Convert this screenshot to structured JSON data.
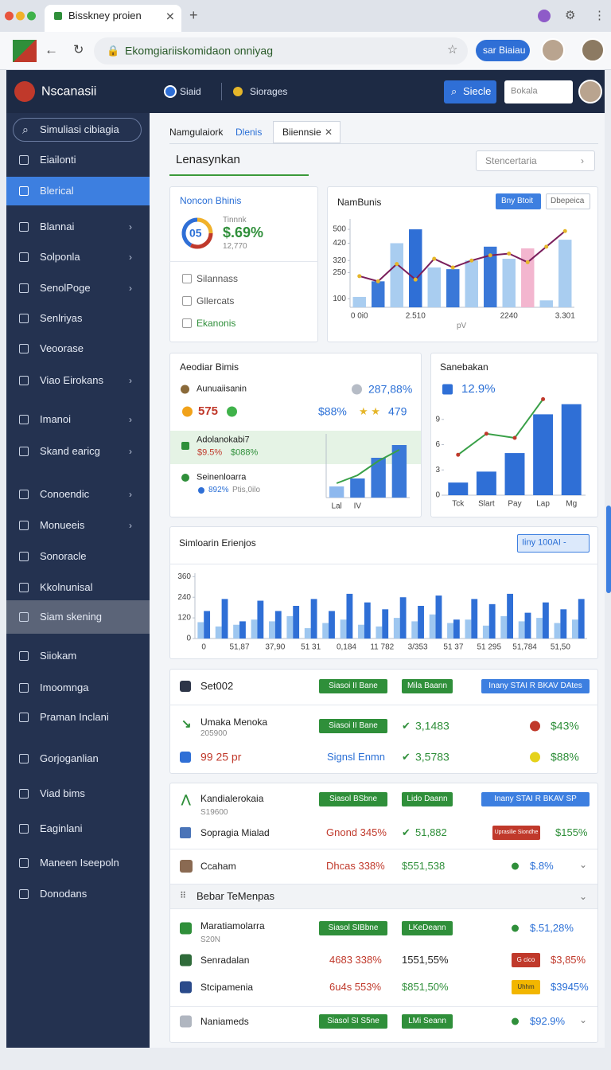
{
  "browser": {
    "tab_title": "Bisskney proien",
    "url": "Ekomgiariiskomidaon onniyag",
    "account_button": "sar Biaiau"
  },
  "header": {
    "brand": "Nscanasii",
    "menu": [
      "Siaid",
      "Siorages"
    ],
    "search_button": "Siecle",
    "search_placeholder": "Bokala"
  },
  "sidebar": {
    "search": "Simuliasi cibiagia",
    "items": [
      {
        "label": "Eiailonti"
      },
      {
        "label": "Blerical",
        "active": true
      },
      {
        "label": "Blannai",
        "chevron": true
      },
      {
        "label": "Solponla",
        "chevron": true
      },
      {
        "label": "SenolPoge",
        "chevron": true
      },
      {
        "label": "Senlriyas"
      },
      {
        "label": "Veoorase"
      },
      {
        "label": "Viao Eirokans",
        "chevron": true
      },
      {
        "label": "Imanoi",
        "chevron": true
      },
      {
        "label": "Skand earicg",
        "chevron": true
      },
      {
        "label": "Conoendic",
        "chevron": true
      },
      {
        "label": "Monueeis",
        "chevron": true
      },
      {
        "label": "Sonoracle"
      },
      {
        "label": "Kkolnunisal"
      },
      {
        "label": "Siam skening",
        "highlight": true
      },
      {
        "label": "Siiokam"
      },
      {
        "label": "Imoomnga"
      },
      {
        "label": "Praman Inclani"
      },
      {
        "label": "Gorjoganlian"
      },
      {
        "label": "Viad bims"
      },
      {
        "label": "Eaginlani"
      },
      {
        "label": "Maneen Iseepoln"
      },
      {
        "label": "Donodans"
      }
    ]
  },
  "tabs": [
    "Namgulaiork",
    "Dlenis",
    "Biiennsie"
  ],
  "page_title": "Lenasynkan",
  "filter": "Stencertaria",
  "summary_card": {
    "title": "Noncon Bhinis",
    "gauge": "05",
    "label": "Tinnnk",
    "value": "$.69%",
    "sub": "12,770",
    "list": [
      "Silannass",
      "Gllercats",
      "Ekanonis"
    ]
  },
  "stats_card": {
    "title": "Aeodiar Bimis",
    "row1": {
      "label": "Aunuaiisanin",
      "value": "287,88%"
    },
    "row2": {
      "value": "575",
      "value2": "$88%",
      "value3": "479"
    },
    "highlight": {
      "label": "Adolanokabi7",
      "value": "$9.5%",
      "value2": "$088%"
    },
    "row3": {
      "label": "Seinenloarra",
      "value": "892%",
      "value2": "Ptis,0ilo"
    }
  },
  "chart_data": [
    {
      "type": "bar",
      "title": "NamBunis",
      "buttons": [
        "Bny Btoit",
        "Dbepeica"
      ],
      "xlabel": "pV",
      "categories": [
        "0 0i0",
        null,
        null,
        "2.510",
        null,
        null,
        null,
        null,
        "2240",
        null,
        null,
        "3.301"
      ],
      "ylim": [
        50,
        560
      ],
      "yticks": [
        100,
        250,
        320,
        420,
        500
      ],
      "series": [
        {
          "colors": [
            "#a9cdf0",
            "#3a78d8",
            "#a9cdf0",
            "#2f6fd6",
            "#a9cdf0",
            "#3a78d8",
            "#a9cdf0",
            "#3a78d8",
            "#a9cdf0",
            "#f3b6cf",
            "#a9cdf0",
            "#a9cdf0"
          ],
          "values": [
            110,
            200,
            420,
            500,
            280,
            270,
            320,
            400,
            330,
            390,
            90,
            440
          ]
        },
        {
          "type": "line",
          "color": "#7a1f5c",
          "marker_color": "#e5b62a",
          "values": [
            230,
            200,
            300,
            210,
            330,
            280,
            320,
            350,
            360,
            310,
            400,
            490
          ]
        }
      ]
    },
    {
      "type": "bar",
      "categories": [
        "Lal",
        "IV",
        null,
        null
      ],
      "ylim": [
        0,
        400
      ],
      "series": [
        {
          "colors": [
            "#8db8ee",
            "#3a78d8",
            "#3a78d8",
            "#3a78d8"
          ],
          "values": [
            70,
            120,
            250,
            330
          ]
        },
        {
          "type": "line",
          "color": "#39a048",
          "values": [
            90,
            140,
            230,
            300
          ]
        }
      ]
    },
    {
      "type": "bar",
      "title": "Sanebakan",
      "subtitle": "12.9%",
      "categories": [
        "Tck",
        "Slart",
        "Pay",
        "Lap",
        "Mg"
      ],
      "ylim": [
        0,
        12
      ],
      "yticks": [
        0,
        3,
        6,
        9
      ],
      "series": [
        {
          "colors": [
            "#2f6fd6",
            "#2f6fd6",
            "#2f6fd6",
            "#2f6fd6",
            "#2f6fd6"
          ],
          "values": [
            1.5,
            2.8,
            5,
            9.6,
            10.8
          ]
        },
        {
          "type": "line",
          "color": "#39a048",
          "marker_color": "#c0392b",
          "values": [
            4.8,
            7.3,
            6.8,
            11.4,
            null
          ]
        }
      ]
    },
    {
      "type": "bar",
      "title": "Simloarin Erienjos",
      "control": "Iiny 100AI -",
      "categories": [
        "0",
        null,
        "51,87",
        null,
        "37,90",
        null,
        "51 31",
        null,
        "0,184",
        null,
        "11 782",
        null,
        "3/353",
        null,
        "51 37",
        null,
        "51 295",
        null,
        "51,784",
        null,
        "51,50",
        null
      ],
      "ylim": [
        0,
        380
      ],
      "yticks": [
        0,
        120,
        240,
        360
      ],
      "series": [
        {
          "color": "#9ec7f0",
          "values": [
            95,
            70,
            80,
            110,
            100,
            130,
            60,
            90,
            110,
            80,
            70,
            120,
            100,
            140,
            90,
            110,
            75,
            130,
            100,
            120,
            90,
            110
          ]
        },
        {
          "color": "#2f6fd6",
          "values": [
            160,
            230,
            100,
            220,
            160,
            190,
            230,
            160,
            260,
            210,
            170,
            240,
            190,
            250,
            110,
            230,
            200,
            260,
            150,
            210,
            170,
            230
          ]
        }
      ]
    }
  ],
  "table": {
    "panel1": {
      "title": "Set002",
      "header_badges": [
        "Siasoi II Bane",
        "Mila Baann",
        "Inany STAI R BKAV DAtes"
      ],
      "rows": [
        {
          "name": "Umaka Menoka",
          "sub": "205900",
          "badge": "Siasoi II Bane",
          "value": "3,1483",
          "pct": "$43%"
        },
        {
          "name": "99 25 pr",
          "status": "Signsl Enmn",
          "value": "3,5783",
          "pct": "$88%"
        }
      ]
    },
    "panel2": {
      "header": {
        "name": "Kandialerokaia",
        "sub": "S19600",
        "badges": [
          "Siasol BSbne",
          "Lido Daann",
          "Inany STAI R BKAV SP"
        ]
      },
      "rows": [
        {
          "name": "Sopragia Mialad",
          "a": "Gnond 345%",
          "b": "51,882",
          "badge": "Uprasilie Siondhe",
          "pct": "$155%"
        },
        {
          "name": "Ccaham",
          "a": "Dhcas 338%",
          "b": "$551,538",
          "pct": "$.8%"
        }
      ],
      "group": "Bebar TeMenpas",
      "group_rows": [
        {
          "name": "Maratiamolarra",
          "sub": "S20N",
          "badges": [
            "Siasol SIBbne",
            "LKeDeann"
          ],
          "pct": "$.51,28%"
        },
        {
          "name": "Senradalan",
          "a": "4683 338%",
          "b": "1551,55%",
          "badge": "G cico",
          "pct": "$3,85%"
        },
        {
          "name": "Stcipamenia",
          "a": "6u4s 553%",
          "b": "$851,50%",
          "badge": "Uhhm",
          "pct": "$3945%"
        },
        {
          "name": "Naniameds",
          "badges": [
            "Siasol SI S5ne",
            "LMi Seann"
          ],
          "pct": "$92.9%"
        }
      ]
    }
  }
}
